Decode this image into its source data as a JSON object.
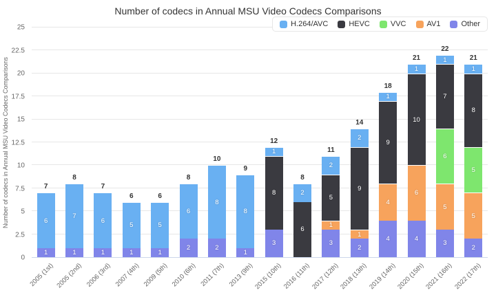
{
  "chart_data": {
    "type": "bar",
    "stacked": true,
    "title": "Number of codecs in Annual MSU Video Codecs Comparisons",
    "ylabel": "Number of codecs in Annual MSU Video Codecs Comparisons",
    "xlabel": "",
    "ylim": [
      0,
      25
    ],
    "ytick_step": 2.5,
    "grid": true,
    "legend_position": "top-right",
    "categories": [
      "2005 (1st)",
      "2005 (2nd)",
      "2006 (3rd)",
      "2007 (4th)",
      "2009 (5th)",
      "2010 (6th)",
      "2011 (7th)",
      "2013 (9th)",
      "2015 (10th)",
      "2016 (11th)",
      "2017 (12th)",
      "2018 (13th)",
      "2019 (14th)",
      "2020 (15th)",
      "2021 (16th)",
      "2022 (17th)"
    ],
    "series": [
      {
        "name": "H.264/AVC",
        "color": "#69b0f2",
        "values": [
          6,
          7,
          6,
          5,
          5,
          6,
          8,
          8,
          1,
          2,
          2,
          2,
          1,
          1,
          1,
          1
        ]
      },
      {
        "name": "HEVC",
        "color": "#3a3a40",
        "values": [
          0,
          0,
          0,
          0,
          0,
          0,
          0,
          0,
          8,
          6,
          5,
          9,
          9,
          10,
          7,
          8
        ]
      },
      {
        "name": "VVC",
        "color": "#7ee66e",
        "values": [
          0,
          0,
          0,
          0,
          0,
          0,
          0,
          0,
          0,
          0,
          0,
          0,
          0,
          0,
          6,
          5
        ]
      },
      {
        "name": "AV1",
        "color": "#f7a35c",
        "values": [
          0,
          0,
          0,
          0,
          0,
          0,
          0,
          0,
          0,
          0,
          1,
          1,
          4,
          6,
          5,
          5
        ]
      },
      {
        "name": "Other",
        "color": "#8085e9",
        "values": [
          1,
          1,
          1,
          1,
          1,
          2,
          2,
          1,
          3,
          0,
          3,
          2,
          4,
          4,
          3,
          2
        ]
      }
    ],
    "stack_order_bottom_to_top": [
      "Other",
      "AV1",
      "VVC",
      "HEVC",
      "H.264/AVC"
    ],
    "totals": [
      7,
      8,
      7,
      6,
      6,
      8,
      10,
      9,
      12,
      8,
      11,
      14,
      18,
      21,
      22,
      21
    ]
  }
}
